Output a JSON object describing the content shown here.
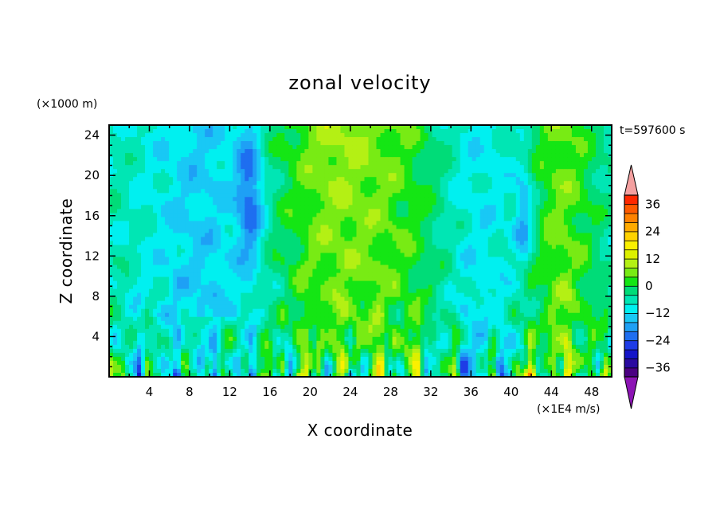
{
  "chart_data": {
    "type": "heatmap",
    "title": "zonal velocity",
    "xlabel": "X coordinate",
    "ylabel": "Z coordinate",
    "y_unit": "(×1000 m)",
    "colorbar_unit": "(×1E4 m/s)",
    "time_label": "t=597600 s",
    "xlim": [
      0,
      50
    ],
    "ylim": [
      0,
      25
    ],
    "x_ticks": [
      4,
      8,
      12,
      16,
      20,
      24,
      28,
      32,
      36,
      40,
      44,
      48
    ],
    "x_tick_labels": [
      "4",
      "8",
      "12",
      "16",
      "20",
      "24",
      "28",
      "32",
      "36",
      "40",
      "44",
      "48"
    ],
    "y_ticks": [
      4,
      8,
      12,
      16,
      20,
      24
    ],
    "y_tick_labels": [
      "4",
      "8",
      "12",
      "16",
      "20",
      "24"
    ],
    "colorbar": {
      "levels": [
        -40,
        -36,
        -32,
        -28,
        -24,
        -20,
        -16,
        -12,
        -8,
        -4,
        0,
        4,
        8,
        12,
        16,
        20,
        24,
        28,
        32,
        36,
        40
      ],
      "tick_values": [
        36,
        24,
        12,
        0,
        -12,
        -24,
        -36
      ],
      "tick_labels": [
        "36",
        "24",
        "12",
        "0",
        "−12",
        "−24",
        "−36"
      ],
      "colors": [
        "#4B0082",
        "#2A0AA0",
        "#1414C8",
        "#1E3CE6",
        "#1E6EF0",
        "#1EA0F5",
        "#19C8F5",
        "#00F0F0",
        "#00E6B4",
        "#00DC78",
        "#14E614",
        "#78EB14",
        "#B4F014",
        "#DCF000",
        "#FAF000",
        "#FFD200",
        "#FFAA00",
        "#FF8200",
        "#FF5A00",
        "#FF2800"
      ],
      "under_color": "#8C14B4",
      "over_color": "#F4A0A0"
    },
    "x_scale_min": 2,
    "y_scale_min": 1
  }
}
